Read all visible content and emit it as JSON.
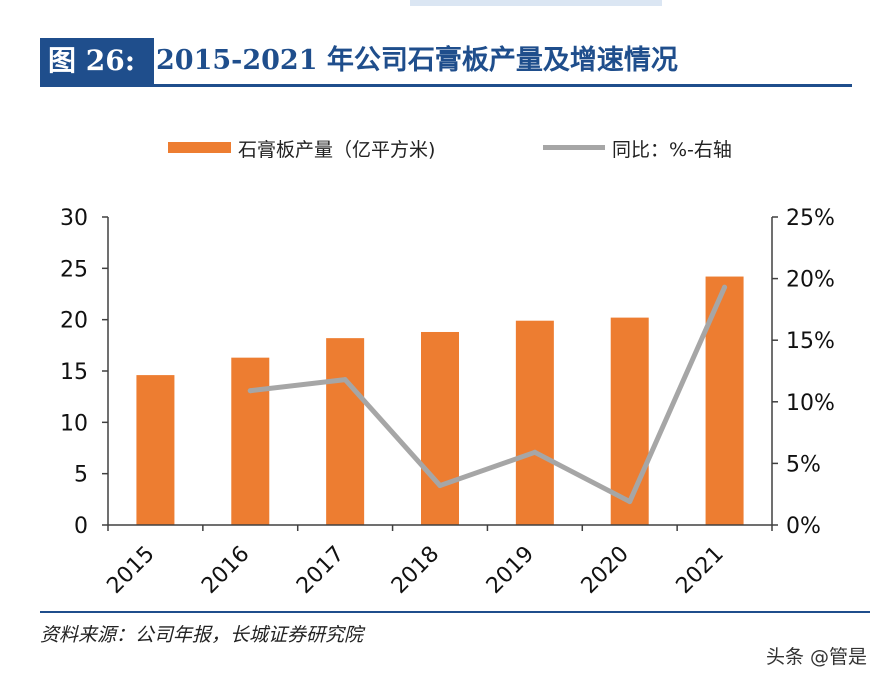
{
  "figure": {
    "label": "图 26:",
    "title": "2015-2021 年公司石膏板产量及增速情况"
  },
  "source": "资料来源：公司年报，长城证券研究院",
  "watermark": "头条 @管是",
  "colors": {
    "bar": "#ed7d31",
    "line": "#a6a6a6",
    "accent": "#1f4e8c",
    "axis": "#404040"
  },
  "chart_data": {
    "type": "bar",
    "categories": [
      "2015",
      "2016",
      "2017",
      "2018",
      "2019",
      "2020",
      "2021"
    ],
    "series": [
      {
        "name": "石膏板产量（亿平方米)",
        "type": "bar",
        "axis": "left",
        "values": [
          14.6,
          16.3,
          18.2,
          18.8,
          19.9,
          20.2,
          24.2
        ]
      },
      {
        "name": "同比：%-右轴",
        "type": "line",
        "axis": "right",
        "values": [
          null,
          10.9,
          11.8,
          3.2,
          5.9,
          1.9,
          19.3
        ]
      }
    ],
    "y_left": {
      "range": [
        0,
        30
      ],
      "ticks": [
        "0",
        "5",
        "10",
        "15",
        "20",
        "25",
        "30"
      ]
    },
    "y_right": {
      "range": [
        0,
        25
      ],
      "ticks": [
        "0%",
        "5%",
        "10%",
        "15%",
        "20%",
        "25%"
      ]
    },
    "legend_position": "top-center"
  }
}
